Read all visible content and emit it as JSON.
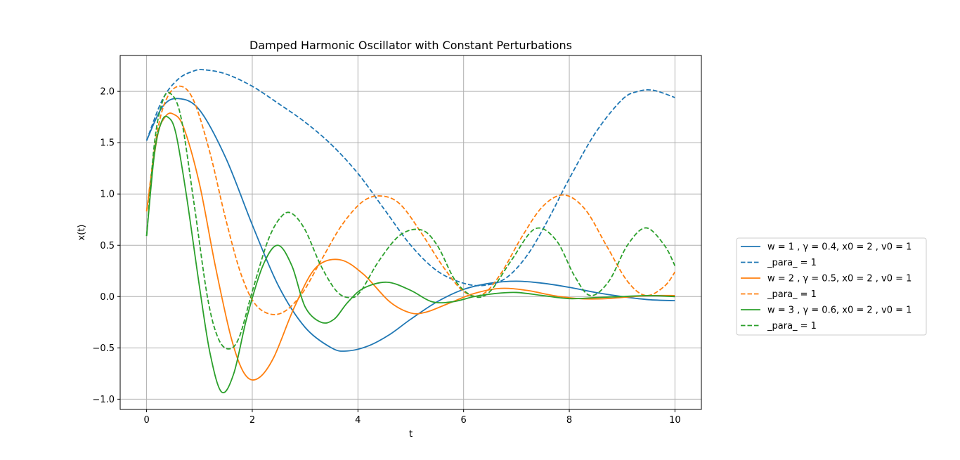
{
  "chart_data": {
    "type": "line",
    "title": "Damped Harmonic Oscillator with Constant Perturbations",
    "xlabel": "t",
    "ylabel": "x(t)",
    "xlim": [
      -0.5,
      10.5
    ],
    "ylim": [
      -1.1,
      2.35
    ],
    "xticks": [
      0,
      2,
      4,
      6,
      8,
      10
    ],
    "xtick_labels": [
      "0",
      "2",
      "4",
      "6",
      "8",
      "10"
    ],
    "yticks": [
      -1.0,
      -0.5,
      0.0,
      0.5,
      1.0,
      1.5,
      2.0
    ],
    "ytick_labels": [
      "−1.0",
      "−0.5",
      "0.0",
      "0.5",
      "1.0",
      "1.5",
      "2.0"
    ],
    "grid": true,
    "legend_position": "outside-right",
    "series": [
      {
        "name": "w = 1 , γ = 0.4, x0 = 2 , v0 = 1",
        "color": "#1f77b4",
        "dash": "solid",
        "x": [
          0,
          0.3,
          0.6,
          1.0,
          1.5,
          2.0,
          2.5,
          3.0,
          3.5,
          3.8,
          4.2,
          4.6,
          5.0,
          5.5,
          6.0,
          6.5,
          7.0,
          7.5,
          8.0,
          8.5,
          9.0,
          9.5,
          10.0
        ],
        "y": [
          1.52,
          1.85,
          1.93,
          1.82,
          1.35,
          0.7,
          0.1,
          -0.3,
          -0.5,
          -0.53,
          -0.48,
          -0.37,
          -0.22,
          -0.05,
          0.07,
          0.13,
          0.15,
          0.13,
          0.09,
          0.04,
          0.0,
          -0.03,
          -0.04
        ]
      },
      {
        "name": "_para_ = 1",
        "color": "#1f77b4",
        "dash": "dashed",
        "x": [
          0,
          0.3,
          0.6,
          0.9,
          1.1,
          1.5,
          2.0,
          2.5,
          3.0,
          3.5,
          4.0,
          4.5,
          5.0,
          5.5,
          6.0,
          6.4,
          6.8,
          7.2,
          7.6,
          8.0,
          8.5,
          9.0,
          9.3,
          9.6,
          10.0
        ],
        "y": [
          1.52,
          1.92,
          2.12,
          2.2,
          2.21,
          2.17,
          2.05,
          1.88,
          1.7,
          1.48,
          1.2,
          0.85,
          0.5,
          0.25,
          0.13,
          0.11,
          0.18,
          0.4,
          0.75,
          1.15,
          1.6,
          1.92,
          2.0,
          2.01,
          1.94
        ]
      },
      {
        "name": "w = 2 , γ = 0.5, x0 = 2 , v0 = 1",
        "color": "#ff7f0e",
        "dash": "solid",
        "x": [
          0,
          0.2,
          0.35,
          0.5,
          0.7,
          1.0,
          1.3,
          1.6,
          1.85,
          2.1,
          2.4,
          2.8,
          3.2,
          3.65,
          4.1,
          4.6,
          5.0,
          5.3,
          5.7,
          6.2,
          6.7,
          7.2,
          7.7,
          8.2,
          8.7,
          9.2,
          9.6,
          10.0
        ],
        "y": [
          0.83,
          1.55,
          1.75,
          1.78,
          1.65,
          1.1,
          0.3,
          -0.4,
          -0.75,
          -0.8,
          -0.6,
          -0.1,
          0.28,
          0.36,
          0.22,
          -0.05,
          -0.16,
          -0.15,
          -0.07,
          0.03,
          0.08,
          0.06,
          0.01,
          -0.02,
          -0.02,
          0.0,
          0.01,
          0.01
        ]
      },
      {
        "name": "_para_ = 1",
        "color": "#ff7f0e",
        "dash": "dashed",
        "x": [
          0,
          0.2,
          0.4,
          0.65,
          0.9,
          1.2,
          1.5,
          1.8,
          2.1,
          2.5,
          2.9,
          3.3,
          3.7,
          4.1,
          4.45,
          4.8,
          5.2,
          5.6,
          6.0,
          6.35,
          6.7,
          7.1,
          7.5,
          7.9,
          8.3,
          8.7,
          9.1,
          9.45,
          9.8,
          10.0
        ],
        "y": [
          0.83,
          1.6,
          1.95,
          2.05,
          1.9,
          1.4,
          0.75,
          0.2,
          -0.1,
          -0.17,
          0.0,
          0.35,
          0.7,
          0.93,
          0.98,
          0.9,
          0.62,
          0.3,
          0.05,
          0.02,
          0.22,
          0.58,
          0.88,
          0.99,
          0.85,
          0.5,
          0.15,
          0.01,
          0.1,
          0.24
        ]
      },
      {
        "name": "w = 3 , γ = 0.6, x0 = 2 , v0 = 1",
        "color": "#2ca02c",
        "dash": "solid",
        "x": [
          0,
          0.15,
          0.28,
          0.4,
          0.55,
          0.75,
          1.0,
          1.2,
          1.42,
          1.65,
          1.9,
          2.2,
          2.48,
          2.75,
          3.0,
          3.3,
          3.55,
          3.8,
          4.1,
          4.55,
          5.0,
          5.4,
          5.8,
          6.2,
          6.6,
          7.0,
          7.5,
          8.0,
          8.5,
          9.0,
          9.5,
          10.0
        ],
        "y": [
          0.59,
          1.4,
          1.7,
          1.75,
          1.6,
          1.0,
          0.1,
          -0.55,
          -0.93,
          -0.75,
          -0.2,
          0.3,
          0.5,
          0.3,
          -0.1,
          -0.25,
          -0.22,
          -0.06,
          0.08,
          0.14,
          0.06,
          -0.05,
          -0.05,
          0.0,
          0.03,
          0.04,
          0.01,
          -0.02,
          -0.01,
          0.0,
          0.01,
          0.0
        ]
      },
      {
        "name": "_para_ = 1",
        "color": "#2ca02c",
        "dash": "dashed",
        "x": [
          0,
          0.15,
          0.3,
          0.45,
          0.65,
          0.9,
          1.15,
          1.35,
          1.55,
          1.75,
          2.0,
          2.3,
          2.55,
          2.75,
          3.0,
          3.3,
          3.6,
          3.85,
          4.05,
          4.4,
          4.8,
          5.2,
          5.5,
          5.85,
          6.2,
          6.5,
          6.9,
          7.35,
          7.75,
          8.1,
          8.4,
          8.75,
          9.1,
          9.45,
          9.8,
          10.0
        ],
        "y": [
          0.59,
          1.5,
          1.9,
          1.98,
          1.75,
          0.9,
          0.0,
          -0.4,
          -0.51,
          -0.4,
          0.05,
          0.55,
          0.78,
          0.81,
          0.65,
          0.3,
          0.05,
          -0.01,
          0.05,
          0.35,
          0.6,
          0.65,
          0.5,
          0.15,
          0.0,
          0.05,
          0.35,
          0.66,
          0.55,
          0.2,
          0.01,
          0.15,
          0.5,
          0.67,
          0.5,
          0.3
        ]
      }
    ]
  }
}
